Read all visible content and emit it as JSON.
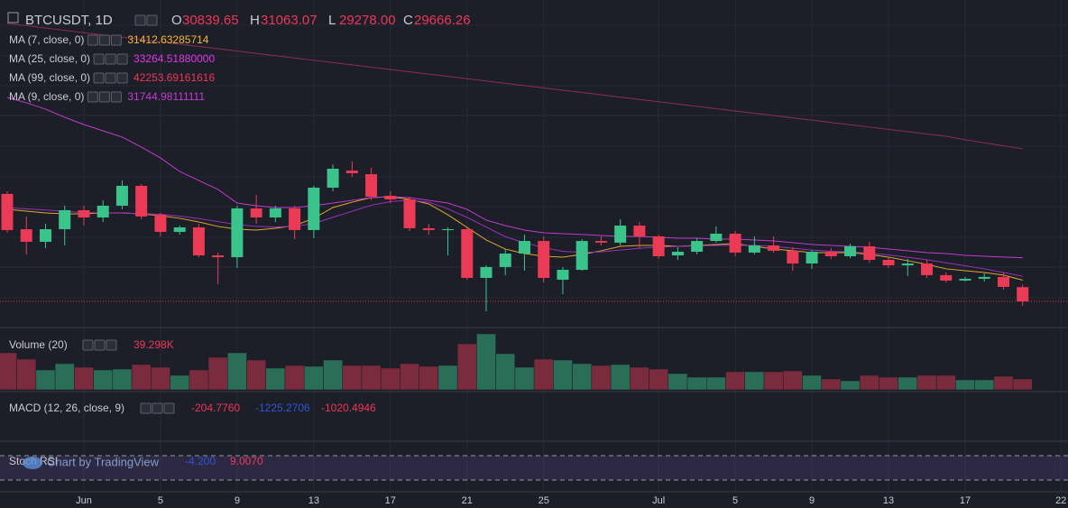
{
  "header": {
    "symbol": "BTCUSDT, 1D",
    "ohlc_letters": [
      "O",
      "H",
      "L",
      "C"
    ],
    "ohlc_labels": [
      "30839.65",
      "31063.07",
      "29278.00",
      "29666.26"
    ]
  },
  "chart_data": {
    "type": "candlestick",
    "ylim": [
      27580,
      54535
    ],
    "up_color": "#3ac48c",
    "down_color": "#eb3a56",
    "candles": [
      [
        38530,
        38750,
        35320,
        35550
      ],
      [
        35620,
        36670,
        33540,
        34580
      ],
      [
        34580,
        36070,
        34060,
        35620
      ],
      [
        35620,
        37560,
        34280,
        37190
      ],
      [
        37190,
        37560,
        35920,
        36590
      ],
      [
        36590,
        38010,
        36220,
        37560
      ],
      [
        37560,
        39640,
        37260,
        39200
      ],
      [
        39200,
        39350,
        36440,
        36670
      ],
      [
        36810,
        36960,
        35030,
        35400
      ],
      [
        35400,
        35920,
        35180,
        35770
      ],
      [
        35770,
        36070,
        33310,
        33460
      ],
      [
        33460,
        33690,
        31080,
        33310
      ],
      [
        33310,
        37560,
        32420,
        37340
      ],
      [
        37340,
        38450,
        36070,
        36590
      ],
      [
        36590,
        37560,
        36220,
        37340
      ],
      [
        37340,
        37560,
        34800,
        35550
      ],
      [
        35550,
        39200,
        34880,
        39050
      ],
      [
        39050,
        40980,
        38750,
        40610
      ],
      [
        40460,
        41210,
        39940,
        40240
      ],
      [
        40160,
        40690,
        38010,
        38300
      ],
      [
        38380,
        38750,
        37780,
        38080
      ],
      [
        38080,
        38300,
        35470,
        35700
      ],
      [
        35700,
        36070,
        35180,
        35550
      ],
      [
        35550,
        35770,
        33460,
        35620
      ],
      [
        35620,
        35770,
        31450,
        31600
      ],
      [
        31600,
        32640,
        28850,
        32500
      ],
      [
        32500,
        33980,
        31830,
        33610
      ],
      [
        33610,
        35180,
        32200,
        34650
      ],
      [
        34650,
        35030,
        31230,
        31600
      ],
      [
        31450,
        32500,
        30260,
        32270
      ],
      [
        32270,
        34800,
        32200,
        34650
      ],
      [
        34650,
        35030,
        34280,
        34510
      ],
      [
        34510,
        36440,
        34280,
        35920
      ],
      [
        35920,
        36220,
        34060,
        35030
      ],
      [
        35030,
        35180,
        33170,
        33390
      ],
      [
        33460,
        34130,
        33090,
        33760
      ],
      [
        33760,
        34880,
        33540,
        34650
      ],
      [
        34650,
        35850,
        34510,
        35250
      ],
      [
        35250,
        35470,
        33390,
        33690
      ],
      [
        33690,
        35030,
        33540,
        34280
      ],
      [
        34280,
        35030,
        33690,
        33840
      ],
      [
        33840,
        34130,
        32200,
        32790
      ],
      [
        32790,
        33910,
        32350,
        33760
      ],
      [
        33760,
        34060,
        33170,
        33390
      ],
      [
        33390,
        34430,
        33240,
        34210
      ],
      [
        34210,
        34580,
        32870,
        33090
      ],
      [
        33090,
        33310,
        32420,
        32640
      ],
      [
        32640,
        33170,
        31750,
        32790
      ],
      [
        32790,
        33090,
        31600,
        31830
      ],
      [
        31830,
        32050,
        31230,
        31380
      ],
      [
        31380,
        31680,
        31300,
        31530
      ],
      [
        31530,
        31970,
        31300,
        31680
      ],
      [
        31680,
        32050,
        30630,
        30860
      ],
      [
        30839.65,
        31063.07,
        29278.0,
        29666.26
      ]
    ],
    "ma": [
      {
        "name": "MA (7, close, 0)",
        "color": "#e0a82e",
        "label_color": "#f5b731",
        "last_label": "31412.63285714",
        "values": [
          37260,
          37110,
          36960,
          36890,
          36890,
          36960,
          36960,
          36890,
          36740,
          36520,
          36220,
          35850,
          35620,
          35550,
          35700,
          35920,
          36520,
          37410,
          37850,
          38230,
          38300,
          38080,
          37710,
          36810,
          35770,
          34730,
          33980,
          33610,
          33390,
          33310,
          33540,
          33840,
          34210,
          34280,
          34280,
          34210,
          34280,
          34360,
          34430,
          34210,
          33980,
          33840,
          33690,
          33690,
          33690,
          33540,
          33310,
          33020,
          32720,
          32350,
          32200,
          32050,
          31830,
          31412.63285714
        ]
      },
      {
        "name": "MA (25, close, 0)",
        "color": "#c13bcf",
        "label_color": "#e337e6",
        "last_label": "33264.51880000",
        "values": [
          46490,
          46050,
          45530,
          44855,
          44260,
          43740,
          43220,
          42400,
          41500,
          40390,
          39640,
          38900,
          37780,
          37560,
          37410,
          37410,
          37560,
          37780,
          38000,
          38230,
          38300,
          38230,
          38000,
          37780,
          37260,
          36370,
          35920,
          35550,
          35320,
          35250,
          35180,
          35100,
          35030,
          35030,
          34950,
          34880,
          34880,
          34800,
          34800,
          34730,
          34650,
          34510,
          34360,
          34280,
          34210,
          34130,
          33980,
          33840,
          33690,
          33610,
          33460,
          33390,
          33320,
          33264.5188
        ]
      },
      {
        "name": "MA (99, close, 0)",
        "color": "#8e2a5c",
        "label_color": "#f0365a",
        "last_label": "42253.69161616",
        "values": [
          52600,
          52410,
          52220,
          52030,
          51840,
          51650,
          51460,
          51270,
          51080,
          50890,
          50700,
          50510,
          50320,
          50130,
          49940,
          49750,
          49560,
          49370,
          49180,
          48990,
          48800,
          48610,
          48420,
          48230,
          48040,
          47850,
          47660,
          47470,
          47280,
          47090,
          46900,
          46710,
          46520,
          46330,
          46140,
          45950,
          45760,
          45570,
          45380,
          45190,
          45000,
          44810,
          44620,
          44430,
          44240,
          44050,
          43860,
          43670,
          43480,
          43290,
          43000,
          42750,
          42500,
          42253.69161616
        ]
      },
      {
        "name": "MA (9, close, 0)",
        "color": "#9b30c0",
        "label_color": "#c43cd6",
        "last_label": "31744.98111111",
        "values": [
          37400,
          37300,
          37200,
          37100,
          37000,
          36950,
          36950,
          36900,
          36850,
          36700,
          36500,
          36250,
          36000,
          35850,
          35800,
          35850,
          36100,
          36600,
          37100,
          37600,
          37900,
          38000,
          37850,
          37300,
          36600,
          35800,
          35000,
          34500,
          34100,
          33800,
          33700,
          33750,
          33900,
          34050,
          34150,
          34200,
          34250,
          34280,
          34300,
          34280,
          34200,
          34050,
          33900,
          33800,
          33750,
          33650,
          33500,
          33300,
          33100,
          32850,
          32600,
          32350,
          32050,
          31744.98111111
        ]
      }
    ],
    "volume": {
      "name": "Volume (20)",
      "ylim": [
        0,
        219425
      ],
      "last_label": "39.298K",
      "up_color": "#2a6e58",
      "down_color": "#7a2b3d",
      "values": [
        134275,
        111350,
        72050,
        94975,
        81875,
        72050,
        75325,
        91700,
        81875,
        52400,
        72050,
        117900,
        134275,
        108075,
        78600,
        88425,
        85150,
        108075,
        88425,
        88425,
        78600,
        94975,
        85150,
        88425,
        167025,
        203050,
        131000,
        81875,
        111350,
        108075,
        94975,
        88425,
        91700,
        81875,
        75325,
        58950,
        45850,
        45850,
        65500,
        65500,
        65500,
        68775,
        52400,
        39300,
        32750,
        52400,
        45850,
        45850,
        52400,
        52400,
        36025,
        36025,
        49125,
        39298
      ]
    },
    "macd": {
      "name": "MACD (12, 26, close, 9)",
      "labels": [
        "-204.7760",
        "-1225.2706",
        "-1020.4946"
      ],
      "label_colors": [
        "#f0365a",
        "#2f54d8",
        "#f0365a"
      ]
    },
    "rsi": {
      "name": "Stoch RSI",
      "labels": [
        "-4.200",
        "9.0070"
      ],
      "label_colors": [
        "#2f54d8",
        "#f0365a"
      ]
    },
    "x_labels": [
      "Jun",
      "5",
      "9",
      "13",
      "17",
      "21",
      "25",
      "Jul",
      "5",
      "9",
      "13",
      "17",
      "22"
    ]
  },
  "watermark": "Chart by TradingView"
}
